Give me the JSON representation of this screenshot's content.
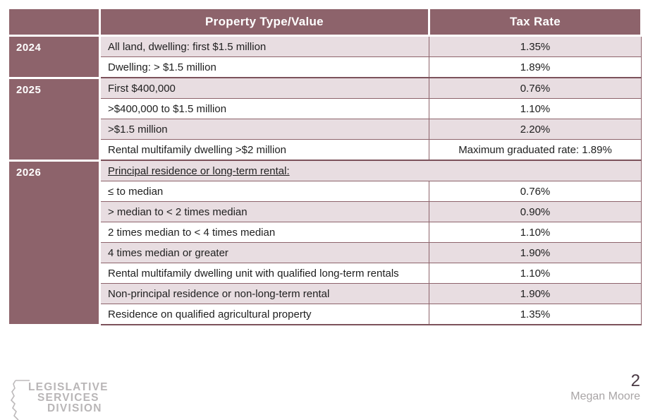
{
  "colors": {
    "header_bg": "#8d636b",
    "row_alt_bg": "#e8dde1",
    "row_bg": "#ffffff",
    "border": "#7c525b",
    "text": "#202020",
    "logo_gray": "#b9b6b7",
    "page_number_color": "#4a3a44"
  },
  "table": {
    "headers": {
      "year": "",
      "property": "Property Type/Value",
      "rate": "Tax Rate"
    },
    "groups": [
      {
        "year": "2024",
        "rows": [
          {
            "property": "All land, dwelling: first $1.5 million",
            "rate": "1.35%"
          },
          {
            "property": "Dwelling: > $1.5 million",
            "rate": "1.89%"
          }
        ]
      },
      {
        "year": "2025",
        "rows": [
          {
            "property": "First $400,000",
            "rate": "0.76%"
          },
          {
            "property": ">$400,000 to $1.5 million",
            "rate": "1.10%"
          },
          {
            "property": ">$1.5 million",
            "rate": "2.20%"
          },
          {
            "property": "Rental multifamily dwelling >$2 million",
            "rate": "Maximum graduated rate: 1.89%"
          }
        ]
      },
      {
        "year": "2026",
        "rows": [
          {
            "property": "Principal residence or long-term rental:",
            "rate": null,
            "span": true,
            "underline": true
          },
          {
            "property": "≤ to median",
            "rate": "0.76%"
          },
          {
            "property": "> median to < 2 times median",
            "rate": "0.90%"
          },
          {
            "property": "2 times median to < 4 times median",
            "rate": "1.10%"
          },
          {
            "property": "4 times median or greater",
            "rate": "1.90%"
          },
          {
            "property": "Rental multifamily dwelling unit with qualified long-term rentals",
            "rate": "1.10%"
          },
          {
            "property": "Non-principal residence or non-long-term rental",
            "rate": "1.90%"
          },
          {
            "property": "Residence on qualified agricultural property",
            "rate": "1.35%"
          }
        ]
      }
    ]
  },
  "footer": {
    "logo_line1": "LEGISLATIVE",
    "logo_line2": "SERVICES",
    "logo_line3": "DIVISION",
    "page_number": "2",
    "author": "Megan Moore"
  }
}
